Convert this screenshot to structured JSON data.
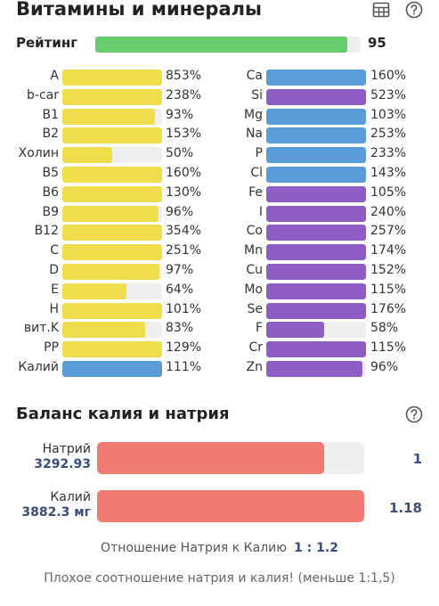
{
  "header": {
    "title": "Витамины и минералы"
  },
  "rating": {
    "label": "Рейтинг",
    "value": "95",
    "percent": 95,
    "color": "#67cd6f"
  },
  "colors": {
    "vitamin": "#f0dd4e",
    "mineral_blue": "#5a9bd8",
    "mineral_purple": "#8e5ec4",
    "track": "#efefef"
  },
  "vitamins": [
    {
      "name": "A",
      "value": "853%",
      "pct": 853,
      "color": "yellow"
    },
    {
      "name": "b-car",
      "value": "238%",
      "pct": 238,
      "color": "yellow"
    },
    {
      "name": "B1",
      "value": "93%",
      "pct": 93,
      "color": "yellow"
    },
    {
      "name": "B2",
      "value": "153%",
      "pct": 153,
      "color": "yellow"
    },
    {
      "name": "Холин",
      "value": "50%",
      "pct": 50,
      "color": "yellow"
    },
    {
      "name": "B5",
      "value": "160%",
      "pct": 160,
      "color": "yellow"
    },
    {
      "name": "B6",
      "value": "130%",
      "pct": 130,
      "color": "yellow"
    },
    {
      "name": "B9",
      "value": "96%",
      "pct": 96,
      "color": "yellow"
    },
    {
      "name": "B12",
      "value": "354%",
      "pct": 354,
      "color": "yellow"
    },
    {
      "name": "C",
      "value": "251%",
      "pct": 251,
      "color": "yellow"
    },
    {
      "name": "D",
      "value": "97%",
      "pct": 97,
      "color": "yellow"
    },
    {
      "name": "E",
      "value": "64%",
      "pct": 64,
      "color": "yellow"
    },
    {
      "name": "H",
      "value": "101%",
      "pct": 101,
      "color": "yellow"
    },
    {
      "name": "вит.K",
      "value": "83%",
      "pct": 83,
      "color": "yellow"
    },
    {
      "name": "PP",
      "value": "129%",
      "pct": 129,
      "color": "yellow"
    },
    {
      "name": "Калий",
      "value": "111%",
      "pct": 111,
      "color": "blue"
    }
  ],
  "minerals": [
    {
      "name": "Ca",
      "value": "160%",
      "pct": 160,
      "color": "blue"
    },
    {
      "name": "Si",
      "value": "523%",
      "pct": 523,
      "color": "purple"
    },
    {
      "name": "Mg",
      "value": "103%",
      "pct": 103,
      "color": "blue"
    },
    {
      "name": "Na",
      "value": "253%",
      "pct": 253,
      "color": "blue"
    },
    {
      "name": "P",
      "value": "233%",
      "pct": 233,
      "color": "blue"
    },
    {
      "name": "Cl",
      "value": "143%",
      "pct": 143,
      "color": "blue"
    },
    {
      "name": "Fe",
      "value": "105%",
      "pct": 105,
      "color": "purple"
    },
    {
      "name": "I",
      "value": "240%",
      "pct": 240,
      "color": "purple"
    },
    {
      "name": "Co",
      "value": "257%",
      "pct": 257,
      "color": "purple"
    },
    {
      "name": "Mn",
      "value": "174%",
      "pct": 174,
      "color": "purple"
    },
    {
      "name": "Cu",
      "value": "152%",
      "pct": 152,
      "color": "purple"
    },
    {
      "name": "Mo",
      "value": "115%",
      "pct": 115,
      "color": "purple"
    },
    {
      "name": "Se",
      "value": "176%",
      "pct": 176,
      "color": "purple"
    },
    {
      "name": "F",
      "value": "58%",
      "pct": 58,
      "color": "purple"
    },
    {
      "name": "Cr",
      "value": "115%",
      "pct": 115,
      "color": "purple"
    },
    {
      "name": "Zn",
      "value": "96%",
      "pct": 96,
      "color": "purple"
    }
  ],
  "balance": {
    "title": "Баланс калия и натрия",
    "sodium": {
      "name": "Натрий",
      "amount": "3292.93",
      "ratio": "1",
      "fill": 0.85
    },
    "potassium": {
      "name": "Калий",
      "amount": "3882.3 мг",
      "ratio": "1.18",
      "fill": 1.0
    },
    "bar_color": "#ef7b73",
    "ratio_label": "Отношение Натрия к Калию",
    "ratio_value": "1 : 1.2",
    "warning": "Плохое соотношение натрия и калия! (меньше 1:1,5)"
  }
}
